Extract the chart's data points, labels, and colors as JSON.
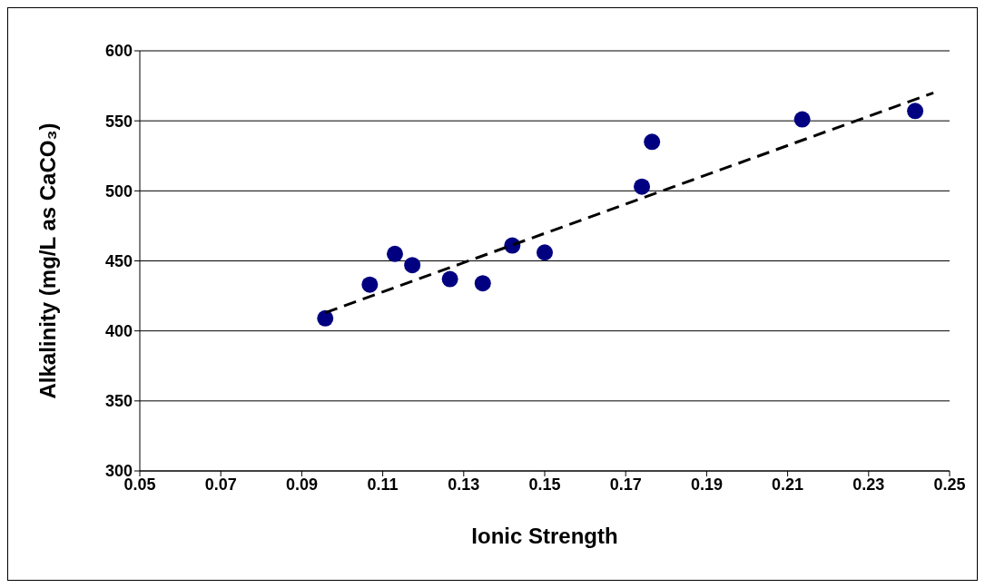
{
  "chart_data": {
    "type": "scatter",
    "xlabel": "Ionic Strength",
    "ylabel": "Alkalinity (mg/L as CaCO₃)",
    "xlim": [
      0.05,
      0.25
    ],
    "xticks": [
      0.05,
      0.07,
      0.09,
      0.11,
      0.13,
      0.15,
      0.17,
      0.19,
      0.21,
      0.23,
      0.25
    ],
    "ylim": [
      300,
      600
    ],
    "yticks": [
      300,
      350,
      400,
      450,
      500,
      550,
      600
    ],
    "grid": "y",
    "legend": false,
    "series": [
      {
        "color": "#000080",
        "marker": "circle",
        "x": [
          0.0958,
          0.1068,
          0.113,
          0.1173,
          0.1266,
          0.1347,
          0.142,
          0.15,
          0.174,
          0.1765,
          0.2136,
          0.2415
        ],
        "values": [
          409,
          433,
          455,
          447,
          437,
          434,
          461,
          456,
          503,
          535,
          551,
          557
        ]
      },
      {
        "type": "line",
        "color": "#000000",
        "line_style": "dashed",
        "marker": "none",
        "x": [
          0.0958,
          0.246
        ],
        "values": [
          413,
          570
        ]
      }
    ]
  }
}
